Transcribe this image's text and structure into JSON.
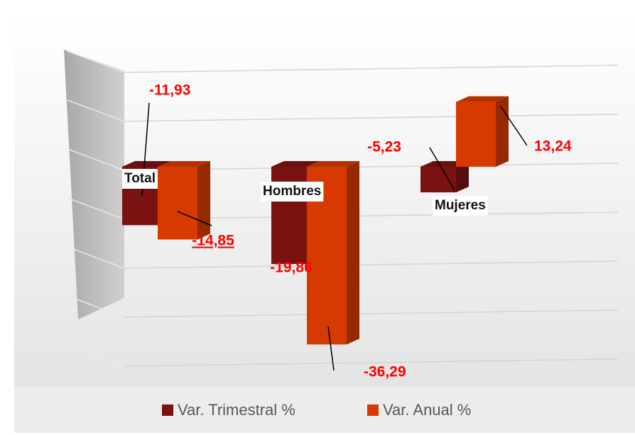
{
  "chart_data": {
    "type": "bar3d",
    "categories": [
      "Total",
      "Hombres",
      "Mujeres"
    ],
    "series": [
      {
        "name": "Var. Trimestral %",
        "color": "#7b1212",
        "values": [
          -11.93,
          -19.86,
          -5.23
        ],
        "value_labels": [
          "-11,93",
          "-19,86",
          "-5,23"
        ]
      },
      {
        "name": "Var. Anual %",
        "color": "#d63a00",
        "values": [
          -14.85,
          -36.29,
          13.24
        ],
        "value_labels": [
          "-14,85",
          "-36,29",
          "13,24"
        ]
      }
    ],
    "ylim": [
      -40,
      20
    ],
    "yticks": [
      -40,
      -30,
      -20,
      -10,
      0,
      10,
      20
    ],
    "grid": true,
    "legend": "bottom"
  }
}
